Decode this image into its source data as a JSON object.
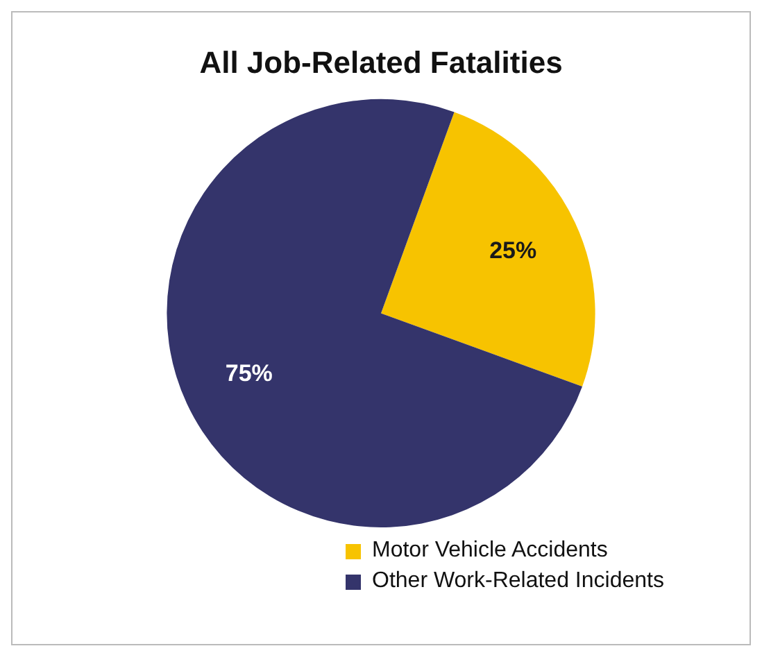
{
  "chart_data": {
    "type": "pie",
    "title": "All Job-Related Fatalities",
    "categories": [
      "Motor Vehicle Accidents",
      "Other Work-Related Incidents"
    ],
    "values": [
      25,
      75
    ],
    "colors": [
      "#f7c300",
      "#34346b"
    ],
    "value_labels": [
      "25%",
      "75%"
    ],
    "legend": "bottom"
  }
}
